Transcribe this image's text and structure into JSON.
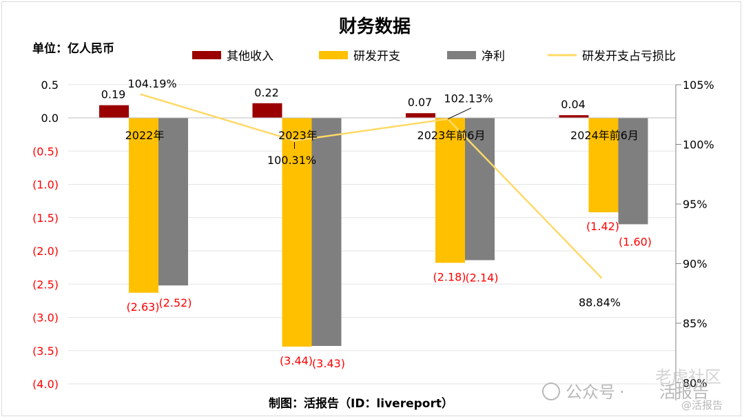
{
  "unit_label": "单位：亿人民币",
  "source_label": "制图：活报告（ID：livereport）",
  "watermark": {
    "platform": "公众号",
    "dot": "·",
    "name": "活报告",
    "community": "老虎社区",
    "handle": "@活报告"
  },
  "colors": {
    "other_income": "#9b0000",
    "rd": "#ffc000",
    "net": "#7f7f7f",
    "ratio": "#ffd966",
    "negative_label": "#ff0000"
  },
  "chart_data": {
    "type": "bar",
    "title": "财务数据",
    "categories": [
      "2022年",
      "2023年",
      "2023年前6月",
      "2024年前6月"
    ],
    "ylim": [
      -4.0,
      0.5
    ],
    "yticks": [
      "0.5",
      "0.0",
      "(0.5)",
      "(1.0)",
      "(1.5)",
      "(2.0)",
      "(2.5)",
      "(3.0)",
      "(3.5)",
      "(4.0)"
    ],
    "ytick_values": [
      0.5,
      0.0,
      -0.5,
      -1.0,
      -1.5,
      -2.0,
      -2.5,
      -3.0,
      -3.5,
      -4.0
    ],
    "y2lim": [
      80,
      105
    ],
    "y2ticks": [
      "105%",
      "100%",
      "95%",
      "90%",
      "85%",
      "80%"
    ],
    "y2tick_values": [
      105,
      100,
      95,
      90,
      85,
      80
    ],
    "series": [
      {
        "name": "其他收入",
        "type": "bar",
        "values": [
          0.19,
          0.22,
          0.07,
          0.04
        ],
        "labels": [
          "0.19",
          "0.22",
          "0.07",
          "0.04"
        ]
      },
      {
        "name": "研发开支",
        "type": "bar",
        "values": [
          -2.63,
          -3.44,
          -2.18,
          -1.42
        ],
        "labels": [
          "(2.63)",
          "(3.44)",
          "(2.18)",
          "(1.42)"
        ]
      },
      {
        "name": "净利",
        "type": "bar",
        "values": [
          -2.52,
          -3.43,
          -2.14,
          -1.6
        ],
        "labels": [
          "(2.52)",
          "(3.43)",
          "(2.14)",
          "(1.60)"
        ]
      },
      {
        "name": "研发开支占亏损比",
        "type": "line",
        "axis": "secondary",
        "values": [
          104.19,
          100.31,
          102.13,
          88.84
        ],
        "labels": [
          "104.19%",
          "100.31%",
          "102.13%",
          "88.84%"
        ]
      }
    ],
    "legend_position": "top"
  }
}
